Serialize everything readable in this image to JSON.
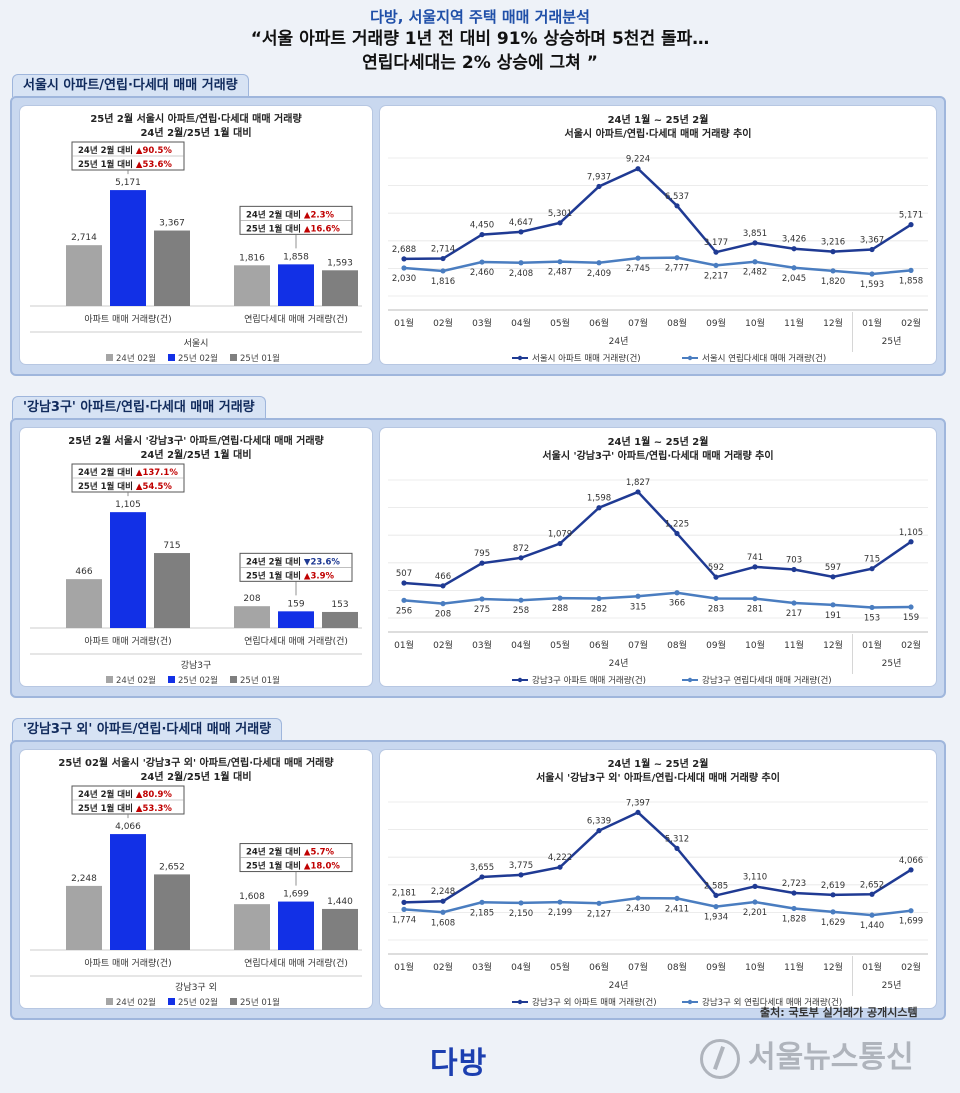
{
  "header": {
    "subtitle": "다방, 서울지역 주택 매매 거래분석",
    "title_line1": "“서울 아파트 거래량 1년 전 대비 91% 상승하며 5천건 돌파…",
    "title_line2": "연립다세대는 2% 상승에 그쳐 ”"
  },
  "footer": {
    "logo": "다방",
    "watermark": "서울뉴스통신",
    "source": "출처: 국토부 실거래가 공개시스템"
  },
  "colors": {
    "navy": "#1f3a93",
    "blue": "#1230e6",
    "light_gray": "#a5a5a5",
    "dark_gray": "#7f7f7f",
    "steel": "#4a7dc0",
    "up": "#c00000",
    "down": "#1f3a93"
  },
  "chart_data": [
    {
      "type": "bar",
      "section_title": "서울시 아파트/연립·다세대 매매 거래량",
      "title": "25년 2월 서울시 아파트/연립·다세대 매매 거래량",
      "subtitle": "24년 2월/25년 1월 대비",
      "categories": [
        "아파트 매매 거래량(건)",
        "연립다세대 매매 거래량(건)"
      ],
      "group_label": "서울시",
      "series": [
        {
          "name": "24년 02월",
          "values": [
            2714,
            1816
          ]
        },
        {
          "name": "25년 02월",
          "values": [
            5171,
            1858
          ]
        },
        {
          "name": "25년 01월",
          "values": [
            3367,
            1593
          ]
        }
      ],
      "labels": [
        [
          "2,714",
          "5,171",
          "3,367"
        ],
        [
          "1,816",
          "1,858",
          "1,593"
        ]
      ],
      "callouts": [
        {
          "l1": "24년 2월 대비 ",
          "v1": "▲90.5%",
          "l2": "25년 1월 대비 ",
          "v2": "▲53.6%",
          "d1": "up",
          "d2": "up"
        },
        {
          "l1": "24년 2월 대비 ",
          "v1": "▲2.3%",
          "l2": "25년 1월 대비 ",
          "v2": "▲16.6%",
          "d1": "up",
          "d2": "up"
        }
      ],
      "ylim": [
        0,
        5800
      ]
    },
    {
      "type": "line",
      "title_line1": "24년 1월 ~ 25년 2월",
      "title_line2": "서울시 아파트/연립·다세대 매매 거래량 추이",
      "x": [
        "01월",
        "02월",
        "03월",
        "04월",
        "05월",
        "06월",
        "07월",
        "08월",
        "09월",
        "10월",
        "11월",
        "12월",
        "01월",
        "02월"
      ],
      "year_labels": [
        "24년",
        "25년"
      ],
      "series": [
        {
          "name": "서울시 아파트 매매 거래량(건)",
          "values": [
            2688,
            2714,
            4450,
            4647,
            5301,
            7937,
            9224,
            6537,
            3177,
            3851,
            3426,
            3216,
            3367,
            5171
          ],
          "labels": [
            "2,688",
            "2,714",
            "4,450",
            "4,647",
            "5,301",
            "7,937",
            "9,224",
            "6,537",
            "3,177",
            "3,851",
            "3,426",
            "3,216",
            "3,367",
            "5,171"
          ]
        },
        {
          "name": "서울시 연립다세대 매매 거래량(건)",
          "values": [
            2030,
            1816,
            2460,
            2408,
            2487,
            2409,
            2745,
            2777,
            2217,
            2482,
            2045,
            1820,
            1593,
            1858
          ],
          "labels": [
            "2,030",
            "1,816",
            "2,460",
            "2,408",
            "2,487",
            "2,409",
            "2,745",
            "2,777",
            "2,217",
            "2,482",
            "2,045",
            "1,820",
            "1,593",
            "1,858"
          ]
        }
      ],
      "ylim": [
        0,
        10000
      ]
    },
    {
      "type": "bar",
      "section_title": "'강남3구' 아파트/연립·다세대 매매 거래량",
      "title": "25년 2월 서울시 '강남3구' 아파트/연립·다세대 매매 거래량",
      "subtitle": "24년 2월/25년 1월 대비",
      "categories": [
        "아파트 매매 거래량(건)",
        "연립다세대 매매 거래량(건)"
      ],
      "group_label": "강남3구",
      "series": [
        {
          "name": "24년 02월",
          "values": [
            466,
            208
          ]
        },
        {
          "name": "25년 02월",
          "values": [
            1105,
            159
          ]
        },
        {
          "name": "25년 01월",
          "values": [
            715,
            153
          ]
        }
      ],
      "labels": [
        [
          "466",
          "1,105",
          "715"
        ],
        [
          "208",
          "159",
          "153"
        ]
      ],
      "callouts": [
        {
          "l1": "24년 2월 대비 ",
          "v1": "▲137.1%",
          "l2": "25년 1월 대비 ",
          "v2": "▲54.5%",
          "d1": "up",
          "d2": "up"
        },
        {
          "l1": "24년 2월 대비 ",
          "v1": "▼23.6%",
          "l2": "25년 1월 대비 ",
          "v2": "▲3.9%",
          "d1": "down",
          "d2": "up"
        }
      ],
      "ylim": [
        0,
        1240
      ]
    },
    {
      "type": "line",
      "title_line1": "24년 1월 ~ 25년 2월",
      "title_line2": "서울시 '강남3구' 아파트/연립·다세대 매매 거래량 추이",
      "x": [
        "01월",
        "02월",
        "03월",
        "04월",
        "05월",
        "06월",
        "07월",
        "08월",
        "09월",
        "10월",
        "11월",
        "12월",
        "01월",
        "02월"
      ],
      "year_labels": [
        "24년",
        "25년"
      ],
      "series": [
        {
          "name": "강남3구 아파트 매매 거래량(건)",
          "values": [
            507,
            466,
            795,
            872,
            1079,
            1598,
            1827,
            1225,
            592,
            741,
            703,
            597,
            715,
            1105
          ],
          "labels": [
            "507",
            "466",
            "795",
            "872",
            "1,079",
            "1,598",
            "1,827",
            "1,225",
            "592",
            "741",
            "703",
            "597",
            "715",
            "1,105"
          ]
        },
        {
          "name": "강남3구 연립다세대 매매 거래량(건)",
          "values": [
            256,
            208,
            275,
            258,
            288,
            282,
            315,
            366,
            283,
            281,
            217,
            191,
            153,
            159
          ],
          "labels": [
            "256",
            "208",
            "275",
            "258",
            "288",
            "282",
            "315",
            "366",
            "283",
            "281",
            "217",
            "191",
            "153",
            "159"
          ]
        }
      ],
      "ylim": [
        0,
        2000
      ]
    },
    {
      "type": "bar",
      "section_title": "'강남3구 외' 아파트/연립·다세대 매매 거래량",
      "title": "25년 02월 서울시 '강남3구 외' 아파트/연립·다세대 매매 거래량",
      "subtitle": "24년 2월/25년 1월 대비",
      "categories": [
        "아파트 매매 거래량(건)",
        "연립다세대 매매 거래량(건)"
      ],
      "group_label": "강남3구 외",
      "series": [
        {
          "name": "24년 02월",
          "values": [
            2248,
            1608
          ]
        },
        {
          "name": "25년 02월",
          "values": [
            4066,
            1699
          ]
        },
        {
          "name": "25년 01월",
          "values": [
            2652,
            1440
          ]
        }
      ],
      "labels": [
        [
          "2,248",
          "4,066",
          "2,652"
        ],
        [
          "1,608",
          "1,699",
          "1,440"
        ]
      ],
      "callouts": [
        {
          "l1": "24년 2월 대비 ",
          "v1": "▲80.9%",
          "l2": "25년 1월 대비 ",
          "v2": "▲53.3%",
          "d1": "up",
          "d2": "up"
        },
        {
          "l1": "24년 2월 대비 ",
          "v1": "▲5.7%",
          "l2": "25년 1월 대비 ",
          "v2": "▲18.0%",
          "d1": "up",
          "d2": "up"
        }
      ],
      "ylim": [
        0,
        4560
      ]
    },
    {
      "type": "line",
      "title_line1": "24년 1월 ~ 25년 2월",
      "title_line2": "서울시 '강남3구 외' 아파트/연립·다세대 매매 거래량 추이",
      "x": [
        "01월",
        "02월",
        "03월",
        "04월",
        "05월",
        "06월",
        "07월",
        "08월",
        "09월",
        "10월",
        "11월",
        "12월",
        "01월",
        "02월"
      ],
      "year_labels": [
        "24년",
        "25년"
      ],
      "series": [
        {
          "name": "강남3구 외 아파트 매매 거래량(건)",
          "values": [
            2181,
            2248,
            3655,
            3775,
            4222,
            6339,
            7397,
            5312,
            2585,
            3110,
            2723,
            2619,
            2652,
            4066
          ],
          "labels": [
            "2,181",
            "2,248",
            "3,655",
            "3,775",
            "4,222",
            "6,339",
            "7,397",
            "5,312",
            "2,585",
            "3,110",
            "2,723",
            "2,619",
            "2,652",
            "4,066"
          ]
        },
        {
          "name": "강남3구 외 연립다세대 매매 거래량(건)",
          "values": [
            1774,
            1608,
            2185,
            2150,
            2199,
            2127,
            2430,
            2411,
            1934,
            2201,
            1828,
            1629,
            1440,
            1699
          ],
          "labels": [
            "1,774",
            "1,608",
            "2,185",
            "2,150",
            "2,199",
            "2,127",
            "2,430",
            "2,411",
            "1,934",
            "2,201",
            "1,828",
            "1,629",
            "1,440",
            "1,699"
          ]
        }
      ],
      "ylim": [
        0,
        8000
      ]
    }
  ]
}
